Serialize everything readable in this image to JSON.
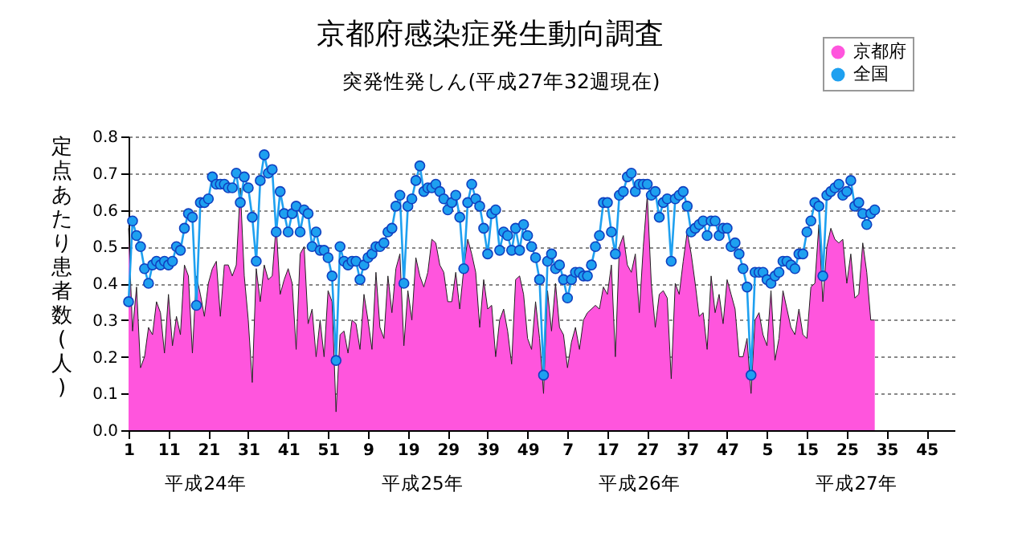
{
  "chart_data": {
    "type": "line",
    "title": "京都府感染症発生動向調査",
    "subtitle": "突発性発しん(平成27年32週現在)",
    "ylabel": "定点あたり患者数(人)",
    "annotations": [
      "平成24年",
      "平成25年",
      "平成26年",
      "平成27年"
    ],
    "categories": [
      "1",
      null,
      null,
      null,
      null,
      null,
      null,
      null,
      null,
      null,
      "11",
      null,
      null,
      null,
      null,
      null,
      null,
      null,
      null,
      null,
      "21",
      null,
      null,
      null,
      null,
      null,
      null,
      null,
      null,
      null,
      "31",
      null,
      null,
      null,
      null,
      null,
      null,
      null,
      null,
      null,
      "41",
      null,
      null,
      null,
      null,
      null,
      null,
      null,
      null,
      null,
      "51",
      null,
      null,
      null,
      null,
      null,
      null,
      null,
      null,
      null,
      "9",
      null,
      null,
      null,
      null,
      null,
      null,
      null,
      null,
      null,
      "19",
      null,
      null,
      null,
      null,
      null,
      null,
      null,
      null,
      null,
      "29",
      null,
      null,
      null,
      null,
      null,
      null,
      null,
      null,
      null,
      "39",
      null,
      null,
      null,
      null,
      null,
      null,
      null,
      null,
      null,
      "49",
      null,
      null,
      null,
      null,
      null,
      null,
      null,
      null,
      null,
      "7",
      null,
      null,
      null,
      null,
      null,
      null,
      null,
      null,
      null,
      "17",
      null,
      null,
      null,
      null,
      null,
      null,
      null,
      null,
      null,
      "27",
      null,
      null,
      null,
      null,
      null,
      null,
      null,
      null,
      null,
      "37",
      null,
      null,
      null,
      null,
      null,
      null,
      null,
      null,
      null,
      "47",
      null,
      null,
      null,
      null,
      null,
      null,
      null,
      null,
      null,
      "5",
      null,
      null,
      null,
      null,
      null,
      null,
      null,
      null,
      null,
      "15",
      null,
      null,
      null,
      null,
      null,
      null,
      null,
      null,
      null,
      "25",
      null,
      null,
      null,
      null,
      null,
      null,
      null,
      null,
      null,
      "35",
      null,
      null,
      null,
      null,
      null,
      null,
      null,
      null,
      null,
      "45",
      null,
      null,
      null,
      null,
      null,
      null,
      null
    ],
    "ylim": [
      0,
      0.8
    ],
    "yticks": [
      {
        "value": 0,
        "label": "0.0"
      },
      0.1,
      0.2,
      0.3,
      0.4,
      0.5,
      0.6,
      0.7,
      0.8
    ],
    "grid": "y",
    "legend": "top right",
    "series": [
      {
        "name": "京都府",
        "type": "area",
        "color": "#ff55dd",
        "marker": "none",
        "values": [
          0.55,
          0.27,
          0.39,
          0.17,
          0.2,
          0.28,
          0.26,
          0.35,
          0.32,
          0.21,
          0.37,
          0.23,
          0.31,
          0.26,
          0.45,
          0.42,
          0.21,
          0.42,
          0.37,
          0.31,
          0.4,
          0.44,
          0.46,
          0.31,
          0.45,
          0.45,
          0.42,
          0.45,
          0.66,
          0.42,
          0.3,
          0.13,
          0.44,
          0.35,
          0.45,
          0.41,
          0.42,
          0.56,
          0.37,
          0.41,
          0.44,
          0.4,
          0.22,
          0.48,
          0.5,
          0.29,
          0.33,
          0.2,
          0.3,
          0.2,
          0.38,
          0.35,
          0.05,
          0.26,
          0.27,
          0.21,
          0.3,
          0.29,
          0.22,
          0.37,
          0.3,
          0.22,
          0.43,
          0.28,
          0.25,
          0.42,
          0.32,
          0.44,
          0.48,
          0.23,
          0.38,
          0.3,
          0.47,
          0.42,
          0.39,
          0.43,
          0.52,
          0.51,
          0.45,
          0.43,
          0.35,
          0.35,
          0.43,
          0.33,
          0.44,
          0.52,
          0.48,
          0.43,
          0.28,
          0.41,
          0.33,
          0.34,
          0.2,
          0.3,
          0.33,
          0.27,
          0.18,
          0.41,
          0.42,
          0.37,
          0.25,
          0.22,
          0.35,
          0.25,
          0.1,
          0.38,
          0.27,
          0.4,
          0.28,
          0.26,
          0.17,
          0.24,
          0.28,
          0.22,
          0.3,
          0.32,
          0.33,
          0.34,
          0.33,
          0.39,
          0.37,
          0.45,
          0.2,
          0.5,
          0.53,
          0.45,
          0.43,
          0.48,
          0.32,
          0.5,
          0.64,
          0.4,
          0.28,
          0.37,
          0.38,
          0.36,
          0.14,
          0.4,
          0.37,
          0.46,
          0.54,
          0.48,
          0.4,
          0.31,
          0.32,
          0.22,
          0.42,
          0.32,
          0.37,
          0.29,
          0.41,
          0.37,
          0.33,
          0.2,
          0.2,
          0.25,
          0.1,
          0.3,
          0.32,
          0.26,
          0.23,
          0.38,
          0.19,
          0.25,
          0.38,
          0.33,
          0.28,
          0.26,
          0.33,
          0.26,
          0.25,
          0.39,
          0.4,
          0.56,
          0.35,
          0.5,
          0.55,
          0.52,
          0.51,
          0.52,
          0.4,
          0.48,
          0.36,
          0.37,
          0.51,
          0.43,
          0.3,
          0.3,
          null,
          null,
          null,
          null,
          null,
          null,
          null,
          null,
          null,
          null,
          null,
          null,
          null,
          null,
          null,
          null,
          null,
          null,
          null,
          null
        ]
      },
      {
        "name": "全国",
        "color": "#1ea0f0",
        "marker": "circle",
        "values": [
          0.35,
          0.57,
          0.53,
          0.5,
          0.44,
          0.4,
          0.45,
          0.46,
          0.45,
          0.46,
          0.45,
          0.46,
          0.5,
          0.49,
          0.55,
          0.59,
          0.58,
          0.34,
          0.62,
          0.62,
          0.63,
          0.69,
          0.67,
          0.67,
          0.67,
          0.66,
          0.66,
          0.7,
          0.62,
          0.69,
          0.66,
          0.58,
          0.46,
          0.68,
          0.75,
          0.7,
          0.71,
          0.54,
          0.65,
          0.59,
          0.54,
          0.59,
          0.61,
          0.54,
          0.6,
          0.59,
          0.5,
          0.54,
          0.49,
          0.49,
          0.47,
          0.42,
          0.19,
          0.5,
          0.46,
          0.45,
          0.46,
          0.46,
          0.41,
          0.45,
          0.47,
          0.48,
          0.5,
          0.5,
          0.51,
          0.54,
          0.55,
          0.61,
          0.64,
          0.4,
          0.61,
          0.63,
          0.68,
          0.72,
          0.65,
          0.66,
          0.66,
          0.67,
          0.65,
          0.63,
          0.6,
          0.62,
          0.64,
          0.58,
          0.44,
          0.62,
          0.67,
          0.63,
          0.61,
          0.55,
          0.48,
          0.59,
          0.6,
          0.49,
          0.54,
          0.53,
          0.49,
          0.55,
          0.49,
          0.56,
          0.53,
          0.5,
          0.47,
          0.41,
          0.15,
          0.46,
          0.48,
          0.44,
          0.45,
          0.41,
          0.36,
          0.41,
          0.43,
          0.43,
          0.42,
          0.42,
          0.45,
          0.5,
          0.53,
          0.62,
          0.62,
          0.54,
          0.48,
          0.64,
          0.65,
          0.69,
          0.7,
          0.65,
          0.67,
          0.67,
          0.67,
          0.64,
          0.65,
          0.58,
          0.62,
          0.63,
          0.46,
          0.63,
          0.64,
          0.65,
          0.61,
          0.54,
          0.55,
          0.56,
          0.57,
          0.53,
          0.57,
          0.57,
          0.53,
          0.55,
          0.55,
          0.5,
          0.51,
          0.48,
          0.44,
          0.39,
          0.15,
          0.43,
          0.43,
          0.43,
          0.41,
          0.4,
          0.42,
          0.43,
          0.46,
          0.46,
          0.45,
          0.44,
          0.48,
          0.48,
          0.54,
          0.57,
          0.62,
          0.61,
          0.42,
          0.64,
          0.65,
          0.66,
          0.67,
          0.64,
          0.65,
          0.68,
          0.61,
          0.62,
          0.59,
          0.56,
          0.59,
          0.6,
          null,
          null,
          null,
          null,
          null,
          null,
          null,
          null,
          null,
          null,
          null,
          null,
          null,
          null,
          null,
          null,
          null,
          null,
          null,
          null
        ]
      }
    ]
  }
}
